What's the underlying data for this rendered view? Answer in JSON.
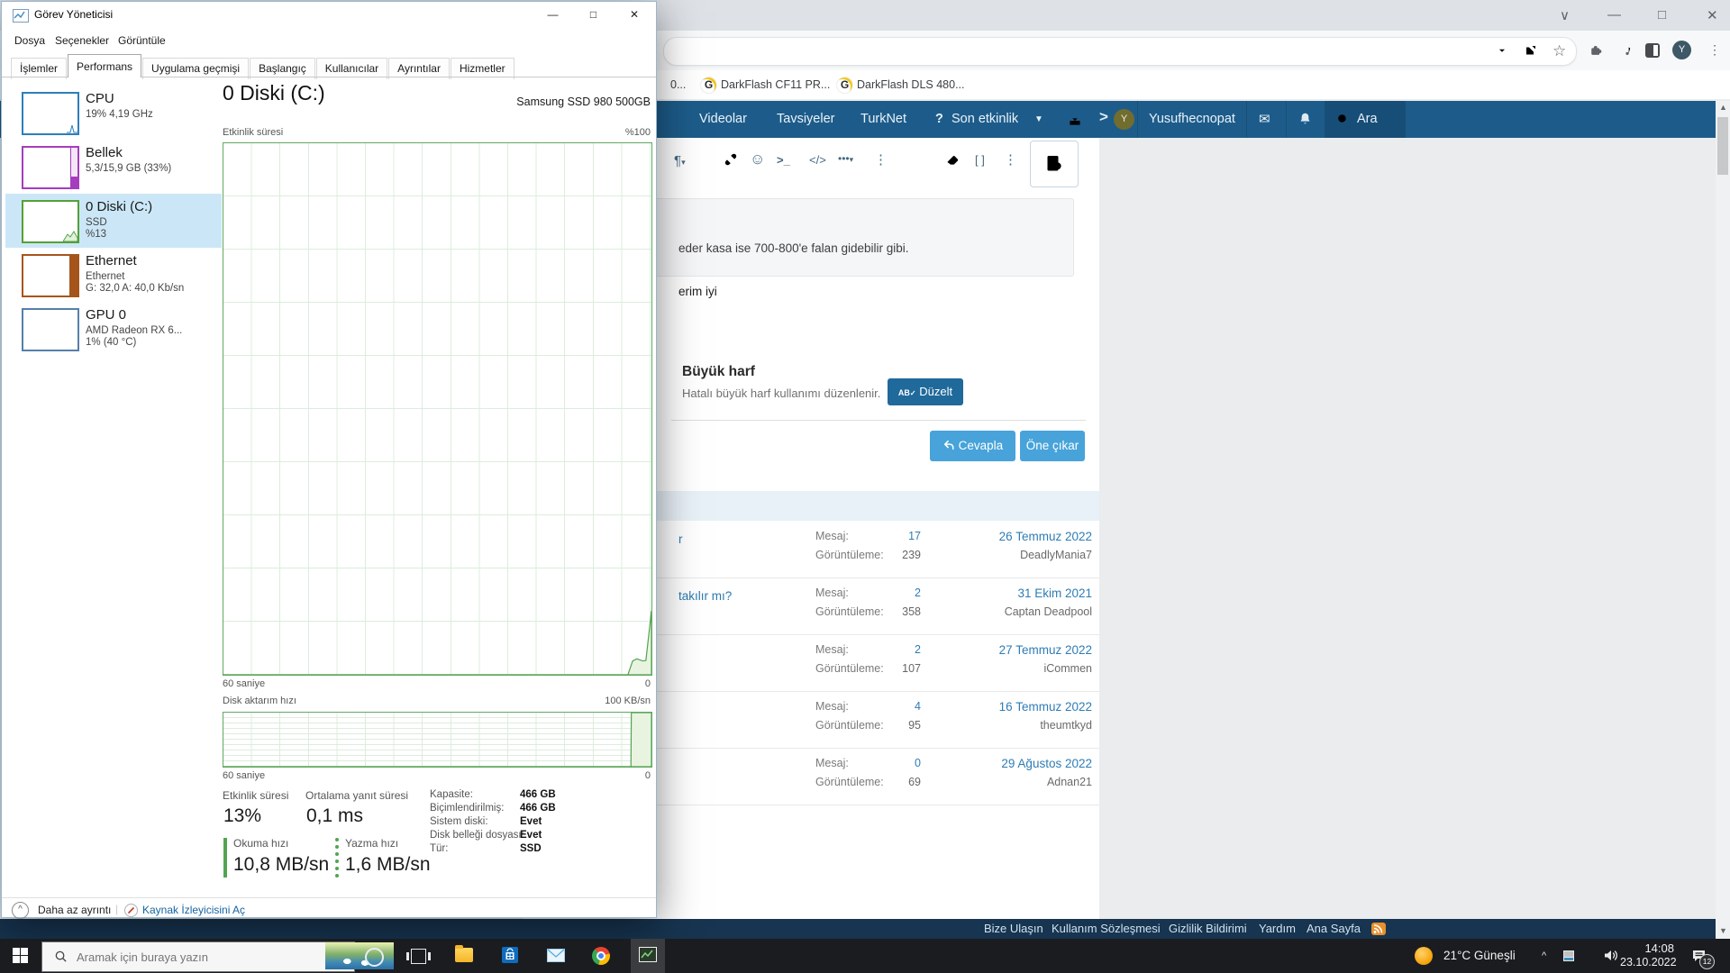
{
  "task_manager": {
    "title": "Görev Yöneticisi",
    "window_controls": {
      "minimize": "—",
      "maximize": "□",
      "close": "✕"
    },
    "menus": {
      "file": "Dosya",
      "options": "Seçenekler",
      "view": "Görüntüle"
    },
    "tabs": [
      "İşlemler",
      "Performans",
      "Uygulama geçmişi",
      "Başlangıç",
      "Kullanıcılar",
      "Ayrıntılar",
      "Hizmetler"
    ],
    "active_tab": "Performans",
    "sidebar": [
      {
        "name": "CPU",
        "line2": "19% 4,19 GHz",
        "line3": "",
        "color": "#2d7fb9"
      },
      {
        "name": "Bellek",
        "line2": "5,3/15,9 GB (33%)",
        "line3": "",
        "color": "#a53dbd"
      },
      {
        "name": "0 Diski (C:)",
        "line2": "SSD",
        "line3": "%13",
        "color": "#55a035"
      },
      {
        "name": "Ethernet",
        "line2": "Ethernet",
        "line3": "G: 32,0 A: 40,0 Kb/sn",
        "color": "#a5551b"
      },
      {
        "name": "GPU 0",
        "line2": "AMD Radeon RX 6...",
        "line3": "1%  (40 °C)",
        "color": "#557fab"
      }
    ],
    "main": {
      "title": "0 Diski (C:)",
      "device": "Samsung SSD 980 500GB",
      "chart1_label": "Etkinlik süresi",
      "chart1_max": "%100",
      "chart1_x": "60 saniye",
      "chart1_x_right": "0",
      "chart2_label": "Disk aktarım hızı",
      "chart2_max": "100 KB/sn",
      "chart2_x": "60 saniye",
      "chart2_x_right": "0",
      "stats": {
        "active_label": "Etkinlik süresi",
        "active_value": "13%",
        "response_label": "Ortalama yanıt süresi",
        "response_value": "0,1 ms",
        "read_label": "Okuma hızı",
        "read_value": "10,8 MB/sn",
        "write_label": "Yazma hızı",
        "write_value": "1,6 MB/sn",
        "right": [
          {
            "label": "Kapasite:",
            "value": "466 GB"
          },
          {
            "label": "Biçimlendirilmiş:",
            "value": "466 GB"
          },
          {
            "label": "Sistem diski:",
            "value": "Evet"
          },
          {
            "label": "Disk belleği dosyası:",
            "value": "Evet"
          },
          {
            "label": "Tür:",
            "value": "SSD"
          }
        ]
      }
    },
    "footer": {
      "less_details": "Daha az ayrıntı",
      "open_resource_monitor": "Kaynak İzleyicisini Aç"
    }
  },
  "chart_data": [
    {
      "type": "area",
      "title": "Etkinlik süresi",
      "ylabel_top": "%100",
      "xlabel_left": "60 saniye",
      "xlabel_right": "0",
      "ylim": [
        0,
        100
      ],
      "series_pct": [
        [
          0,
          0
        ],
        [
          94.5,
          0
        ],
        [
          95.6,
          2.6
        ],
        [
          96.6,
          3.0
        ],
        [
          98.0,
          2.6
        ],
        [
          98.7,
          2.7
        ],
        [
          100,
          12.0
        ]
      ]
    },
    {
      "type": "area",
      "title": "Disk aktarım hızı",
      "ylabel_top": "100 KB/sn",
      "xlabel_left": "60 saniye",
      "xlabel_right": "0",
      "ylim": [
        0,
        100
      ],
      "series_pct": [
        [
          0,
          0
        ],
        [
          95.2,
          0
        ],
        [
          95.3,
          100
        ],
        [
          100,
          100
        ]
      ]
    }
  ],
  "browser": {
    "window_controls": {
      "chevron": "∨",
      "minimize": "—",
      "maximize": "□",
      "close": "✕"
    },
    "avatar_initial": "Y",
    "bookmarks": [
      {
        "label": "0..."
      },
      {
        "label": "DarkFlash CF11 PR...",
        "favicon": "G"
      },
      {
        "label": "DarkFlash DLS 480...",
        "favicon": "G"
      }
    ]
  },
  "site": {
    "nav": {
      "videos": "Videolar",
      "recommendations": "Tavsiyeler",
      "turknet": "TurkNet",
      "whats_new": "Son etkinlik",
      "search": "Ara"
    },
    "user": {
      "name": "Yusufhecnopat",
      "initial": "Y"
    },
    "editor": {
      "quote_text": "eder kasa ise 700-800'e falan gidebilir gibi.",
      "reply_text": "erim iyi"
    },
    "capitalization_card": {
      "title": "Büyük harf",
      "description": "Hatalı büyük harf kullanımı düzenlenir.",
      "button_icon": "AB",
      "button_check": "✓",
      "button_label": "Düzelt"
    },
    "buttons": {
      "reply": "Cevapla",
      "feature": "Öne çıkar"
    },
    "threads": [
      {
        "title": "r",
        "msg_label": "Mesaj:",
        "msg": "17",
        "views_label": "Görüntüleme:",
        "views": "239",
        "date": "26 Temmuz 2022",
        "user": "DeadlyMania7"
      },
      {
        "title": "takılır mı?",
        "msg_label": "Mesaj:",
        "msg": "2",
        "views_label": "Görüntüleme:",
        "views": "358",
        "date": "31 Ekim 2021",
        "user": "Captan Deadpool"
      },
      {
        "title": "",
        "msg_label": "Mesaj:",
        "msg": "2",
        "views_label": "Görüntüleme:",
        "views": "107",
        "date": "27 Temmuz 2022",
        "user": "iCommen"
      },
      {
        "title": "",
        "msg_label": "Mesaj:",
        "msg": "4",
        "views_label": "Görüntüleme:",
        "views": "95",
        "date": "16 Temmuz 2022",
        "user": "theumtkyd"
      },
      {
        "title": "",
        "msg_label": "Mesaj:",
        "msg": "0",
        "views_label": "Görüntüleme:",
        "views": "69",
        "date": "29 Ağustos 2022",
        "user": "Adnan21"
      }
    ],
    "footer_links": [
      "Bize Ulaşın",
      "Kullanım Sözleşmesi",
      "Gizlilik Bildirimi",
      "Yardım",
      "Ana Sayfa"
    ]
  },
  "taskbar": {
    "search_placeholder": "Aramak için buraya yazın",
    "weather": "21°C  Güneşli",
    "time": "14:08",
    "date": "23.10.2022",
    "notification_badge": "12"
  }
}
